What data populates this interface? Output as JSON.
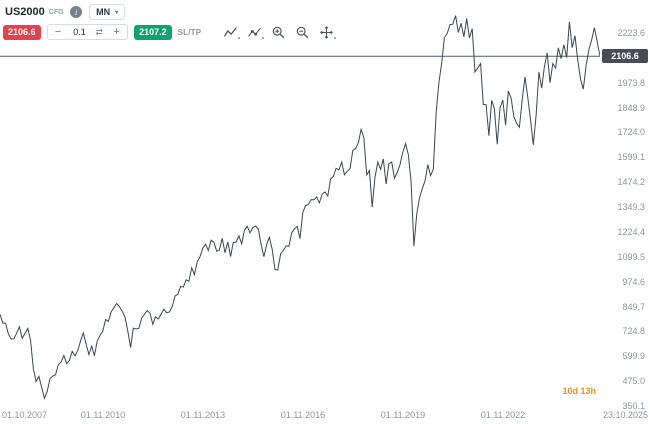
{
  "instrument": {
    "symbol": "US2000",
    "type_label": "CFD",
    "timeframe": "MN",
    "info_icon_glyph": "i",
    "dropdown_caret": "▾"
  },
  "order_panel": {
    "sell_price": "2106.6",
    "buy_price": "2107.2",
    "quantity": "0.1",
    "minus_label": "−",
    "plus_label": "+",
    "units_toggle_glyph": "⇄",
    "sl_tp_label": "SL/TP",
    "sell_color": "#e0434c",
    "buy_color": "#0ca36e"
  },
  "chart_tools": [
    "chart-type",
    "indicators",
    "zoom-in",
    "zoom-out",
    "pan"
  ],
  "chart_data": {
    "type": "line",
    "series_name": "US2000 CFD monthly close",
    "start": "2007-10",
    "interval_months": 1,
    "values": [
      810,
      767,
      766,
      713,
      686,
      688,
      716,
      748,
      690,
      715,
      740,
      680,
      538,
      473,
      499,
      443,
      389,
      423,
      487,
      501,
      508,
      557,
      572,
      604,
      563,
      579,
      625,
      602,
      629,
      678,
      717,
      662,
      609,
      651,
      602,
      676,
      704,
      727,
      784,
      775,
      822,
      844,
      865,
      849,
      827,
      797,
      727,
      644,
      741,
      737,
      741,
      792,
      810,
      830,
      816,
      761,
      798,
      787,
      812,
      837,
      818,
      822,
      849,
      902,
      911,
      951,
      947,
      984,
      977,
      1045,
      1010,
      1074,
      1100,
      1143,
      1163,
      1131,
      1183,
      1173,
      1127,
      1134,
      1193,
      1120,
      1174,
      1101,
      1173,
      1173,
      1205,
      1165,
      1233,
      1253,
      1220,
      1246,
      1254,
      1239,
      1162,
      1100,
      1162,
      1198,
      1136,
      1035,
      1033,
      1114,
      1131,
      1154,
      1152,
      1220,
      1240,
      1252,
      1191,
      1322,
      1357,
      1362,
      1387,
      1386,
      1400,
      1370,
      1415,
      1425,
      1405,
      1491,
      1503,
      1544,
      1536,
      1575,
      1512,
      1529,
      1542,
      1634,
      1643,
      1671,
      1740,
      1696,
      1511,
      1533,
      1349,
      1500,
      1575,
      1539,
      1591,
      1465,
      1567,
      1575,
      1495,
      1523,
      1562,
      1625,
      1668,
      1614,
      1476,
      1153,
      1311,
      1394,
      1441,
      1480,
      1562,
      1508,
      1538,
      1820,
      1975,
      2073,
      2201,
      2221,
      2266,
      2268,
      2311,
      2226,
      2273,
      2204,
      2297,
      2199,
      2245,
      2028,
      2048,
      2070,
      1864,
      1864,
      1708,
      1885,
      1844,
      1665,
      1847,
      1887,
      1761,
      1932,
      1897,
      1803,
      1769,
      1750,
      1889,
      2003,
      1900,
      1785,
      1662,
      1809,
      2027,
      1947,
      2055,
      2124,
      1974,
      2070,
      2048,
      2150,
      2095,
      2165,
      2100,
      2280,
      2150,
      2210,
      2085,
      1990,
      1942,
      2060,
      2140,
      2190,
      2250,
      2180,
      2106.6
    ],
    "current_price": "2106.6",
    "candle_time_remaining": "10d 13h",
    "y_ticks": [
      2223.6,
      1973.8,
      1848.9,
      1724.0,
      1599.1,
      1474.2,
      1349.3,
      1224.4,
      1099.5,
      974.6,
      849.7,
      724.8,
      599.9,
      475.0,
      350.1
    ],
    "x_ticks": [
      {
        "label": "01.10.2007",
        "m": 0
      },
      {
        "label": "01.11.2010",
        "m": 37
      },
      {
        "label": "01.11.2013",
        "m": 73
      },
      {
        "label": "01.11.2016",
        "m": 109
      },
      {
        "label": "01.11.2019",
        "m": 145
      },
      {
        "label": "01.11.2022",
        "m": 181
      },
      {
        "label": "23.10.2025",
        "m": 216
      }
    ],
    "ylim": [
      350.1,
      2223.6
    ],
    "grid": false,
    "legend": false,
    "line_color": "#3b454f",
    "current_price_line_color": "#525b65",
    "current_price_badge_color": "#454e58",
    "countdown_color": "#ef8e1d"
  }
}
